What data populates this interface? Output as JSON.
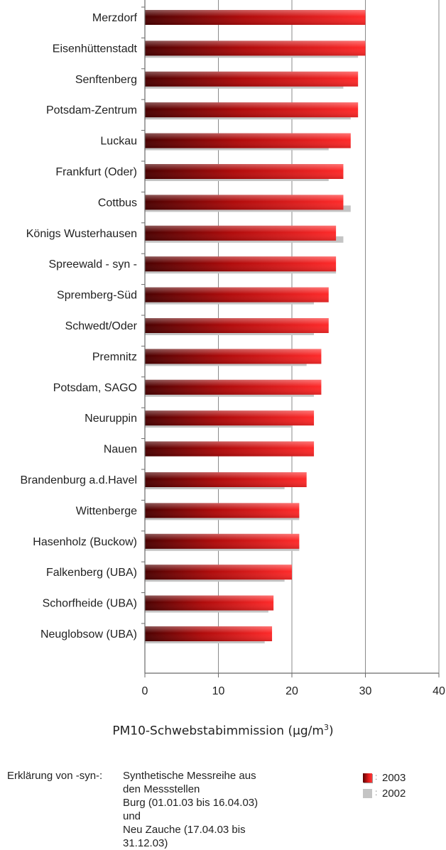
{
  "chart_data": {
    "type": "bar",
    "orientation": "horizontal",
    "categories": [
      "Merzdorf",
      "Eisenhüttenstadt",
      "Senftenberg",
      "Potsdam-Zentrum",
      "Luckau",
      "Frankfurt (Oder)",
      "Cottbus",
      "Königs Wusterhausen",
      "Spreewald - syn -",
      "Spremberg-Süd",
      "Schwedt/Oder",
      "Premnitz",
      "Potsdam, SAGO",
      "Neuruppin",
      "Nauen",
      "Brandenburg a.d.Havel",
      "Wittenberge",
      "Hasenholz (Buckow)",
      "Falkenberg (UBA)",
      "Schorfheide (UBA)",
      "Neuglobsow (UBA)"
    ],
    "series": [
      {
        "name": "2003",
        "color": "#e01818",
        "values": [
          30,
          30,
          29,
          29,
          28,
          27,
          27,
          26,
          26,
          25,
          25,
          24,
          24,
          23,
          23,
          22,
          21,
          21,
          20,
          17.5,
          17.3
        ]
      },
      {
        "name": "2002",
        "color": "#c4c4c4",
        "values": [
          null,
          29,
          27,
          28,
          25,
          25,
          28,
          27,
          26,
          23,
          23,
          22,
          23,
          20,
          null,
          19,
          21,
          21,
          19,
          16.8,
          16.3
        ]
      }
    ],
    "xlim": [
      0,
      40
    ],
    "xticks": [
      "0",
      "10",
      "20",
      "30",
      "40"
    ],
    "xlabel_main": "PM10-Schwebstabimmission (µg/m",
    "xlabel_sup": "3",
    "xlabel_end": ")",
    "grid": "vertical",
    "legend_position": "bottom-right"
  },
  "explanation": {
    "key": "Erklärung von -syn-:",
    "lines": [
      "Synthetische Messreihe aus den Messstellen",
      "Burg (01.01.03 bis 16.04.03) und",
      "Neu Zauche (17.04.03 bis 31.12.03)"
    ]
  },
  "legend": {
    "separator": ":",
    "items": [
      {
        "label": "2003",
        "swatch": "red-gradient"
      },
      {
        "label": "2002",
        "swatch": "gray"
      }
    ]
  }
}
